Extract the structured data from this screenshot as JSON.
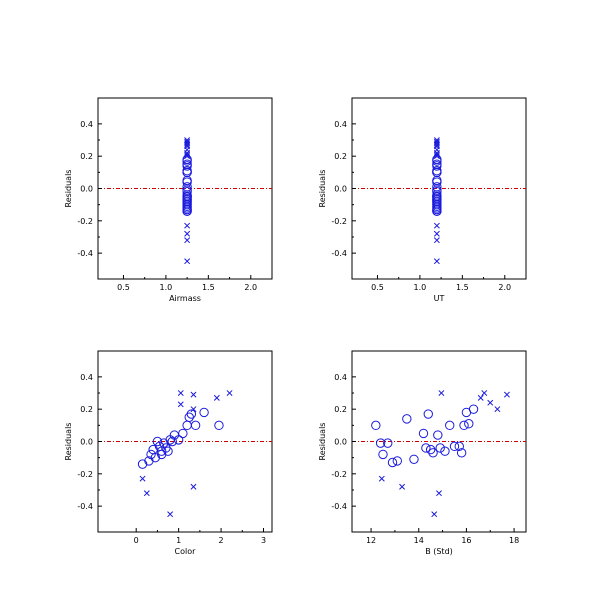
{
  "colors": {
    "points": "#1a1adc",
    "zero_line": "#cc0000",
    "axes": "#000000",
    "background": "#ffffff"
  },
  "chart_data": [
    {
      "type": "scatter",
      "title": "",
      "xlabel": "Airmass",
      "ylabel": "Residuals",
      "xlim": [
        0.2,
        2.25
      ],
      "ylim": [
        -0.56,
        0.56
      ],
      "xticks": [
        0.5,
        1.0,
        1.5,
        2.0
      ],
      "xtick_labels": [
        "0.5",
        "1.0",
        "1.5",
        "2.0"
      ],
      "yticks": [
        -0.4,
        -0.2,
        0.0,
        0.2,
        0.4
      ],
      "ytick_labels": [
        "-0.4",
        "-0.2",
        "0.0",
        "0.2",
        "0.4"
      ],
      "reference_line_y": 0.0,
      "grid": false,
      "series": [
        {
          "marker": "x",
          "x": [
            1.25,
            1.25,
            1.25,
            1.25,
            1.25,
            1.25,
            1.25,
            1.25,
            1.25,
            1.25,
            1.25,
            1.25,
            1.25
          ],
          "y": [
            0.3,
            0.29,
            0.28,
            0.27,
            0.24,
            0.21,
            -0.23,
            -0.28,
            -0.32,
            -0.45,
            0.2,
            0.22,
            0.26
          ]
        },
        {
          "marker": "circle",
          "x": [
            1.25,
            1.25,
            1.25,
            1.25,
            1.25,
            1.25,
            1.25,
            1.25,
            1.25,
            1.25,
            1.25,
            1.25,
            1.25,
            1.25,
            1.25,
            1.25,
            1.25,
            1.25,
            1.25,
            1.25,
            1.25,
            1.25,
            1.25,
            1.25,
            1.25,
            1.25
          ],
          "y": [
            0.18,
            0.17,
            0.15,
            0.14,
            0.11,
            0.1,
            0.1,
            0.05,
            0.04,
            0.01,
            -0.01,
            -0.02,
            -0.04,
            -0.05,
            -0.05,
            -0.06,
            -0.07,
            -0.07,
            -0.08,
            -0.09,
            -0.1,
            -0.11,
            -0.12,
            -0.13,
            -0.14,
            -0.14
          ]
        }
      ]
    },
    {
      "type": "scatter",
      "title": "",
      "xlabel": "UT",
      "ylabel": "Residuals",
      "xlim": [
        0.2,
        2.25
      ],
      "ylim": [
        -0.56,
        0.56
      ],
      "xticks": [
        0.5,
        1.0,
        1.5,
        2.0
      ],
      "xtick_labels": [
        "0.5",
        "1.0",
        "1.5",
        "2.0"
      ],
      "yticks": [
        -0.4,
        -0.2,
        0.0,
        0.2,
        0.4
      ],
      "ytick_labels": [
        "-0.4",
        "-0.2",
        "0.0",
        "0.2",
        "0.4"
      ],
      "reference_line_y": 0.0,
      "grid": false,
      "series": [
        {
          "marker": "x",
          "x": [
            1.2,
            1.2,
            1.2,
            1.2,
            1.2,
            1.2,
            1.2,
            1.2,
            1.2,
            1.2,
            1.2,
            1.2,
            1.2
          ],
          "y": [
            0.3,
            0.29,
            0.28,
            0.27,
            0.24,
            0.21,
            -0.23,
            -0.28,
            -0.32,
            -0.45,
            0.2,
            0.22,
            0.26
          ]
        },
        {
          "marker": "circle",
          "x": [
            1.2,
            1.2,
            1.2,
            1.2,
            1.2,
            1.2,
            1.2,
            1.2,
            1.2,
            1.2,
            1.2,
            1.2,
            1.2,
            1.2,
            1.2,
            1.2,
            1.2,
            1.2,
            1.2,
            1.2,
            1.2,
            1.2,
            1.2,
            1.2,
            1.2,
            1.2
          ],
          "y": [
            0.18,
            0.17,
            0.15,
            0.14,
            0.11,
            0.1,
            0.1,
            0.05,
            0.04,
            0.01,
            -0.01,
            -0.02,
            -0.04,
            -0.05,
            -0.05,
            -0.06,
            -0.07,
            -0.07,
            -0.08,
            -0.09,
            -0.1,
            -0.11,
            -0.12,
            -0.13,
            -0.14,
            -0.14
          ]
        }
      ]
    },
    {
      "type": "scatter",
      "title": "",
      "xlabel": "Color",
      "ylabel": "Residuals",
      "xlim": [
        -0.9,
        3.2
      ],
      "ylim": [
        -0.56,
        0.56
      ],
      "xticks": [
        0,
        1,
        2,
        3
      ],
      "xtick_labels": [
        "0",
        "1",
        "2",
        "3"
      ],
      "yticks": [
        -0.4,
        -0.2,
        0.0,
        0.2,
        0.4
      ],
      "ytick_labels": [
        "-0.4",
        "-0.2",
        "0.0",
        "0.2",
        "0.4"
      ],
      "reference_line_y": 0.0,
      "grid": false,
      "series": [
        {
          "marker": "x",
          "x": [
            0.15,
            0.25,
            0.8,
            1.05,
            1.05,
            1.35,
            1.35,
            1.9,
            2.2,
            1.35
          ],
          "y": [
            -0.23,
            -0.32,
            -0.45,
            0.3,
            0.23,
            0.29,
            -0.28,
            0.27,
            0.3,
            0.2
          ]
        },
        {
          "marker": "circle",
          "x": [
            0.15,
            0.3,
            0.35,
            0.4,
            0.45,
            0.5,
            0.55,
            0.6,
            0.6,
            0.65,
            0.7,
            0.75,
            0.8,
            0.85,
            0.9,
            1.0,
            1.1,
            1.2,
            1.25,
            1.3,
            1.4,
            1.6,
            1.95
          ],
          "y": [
            -0.14,
            -0.12,
            -0.08,
            -0.05,
            -0.1,
            0.0,
            -0.03,
            -0.06,
            -0.08,
            -0.01,
            -0.04,
            -0.06,
            0.01,
            0.0,
            0.04,
            0.01,
            0.05,
            0.1,
            0.15,
            0.17,
            0.1,
            0.18,
            0.1
          ]
        }
      ]
    },
    {
      "type": "scatter",
      "title": "",
      "xlabel": "B (Std)",
      "ylabel": "Residuals",
      "xlim": [
        11.2,
        18.5
      ],
      "ylim": [
        -0.56,
        0.56
      ],
      "xticks": [
        12,
        14,
        16,
        18
      ],
      "xtick_labels": [
        "12",
        "14",
        "16",
        "18"
      ],
      "yticks": [
        -0.4,
        -0.2,
        0.0,
        0.2,
        0.4
      ],
      "ytick_labels": [
        "-0.4",
        "-0.2",
        "0.0",
        "0.2",
        "0.4"
      ],
      "reference_line_y": 0.0,
      "grid": false,
      "series": [
        {
          "marker": "x",
          "x": [
            12.45,
            13.3,
            14.65,
            14.85,
            14.95,
            16.6,
            16.75,
            17.0,
            17.3,
            17.7
          ],
          "y": [
            -0.23,
            -0.28,
            -0.45,
            -0.32,
            0.3,
            0.27,
            0.3,
            0.24,
            0.2,
            0.29
          ]
        },
        {
          "marker": "circle",
          "x": [
            12.2,
            12.4,
            12.5,
            12.7,
            12.9,
            13.1,
            13.5,
            13.8,
            14.2,
            14.3,
            14.4,
            14.5,
            14.6,
            14.8,
            14.9,
            15.1,
            15.3,
            15.5,
            15.7,
            15.8,
            15.9,
            16.0,
            16.1,
            16.3
          ],
          "y": [
            0.1,
            -0.01,
            -0.08,
            -0.01,
            -0.13,
            -0.12,
            0.14,
            -0.11,
            0.05,
            -0.04,
            0.17,
            -0.05,
            -0.07,
            0.04,
            -0.04,
            -0.06,
            0.1,
            -0.03,
            -0.03,
            -0.07,
            0.1,
            0.18,
            0.11,
            0.2
          ]
        }
      ]
    }
  ]
}
